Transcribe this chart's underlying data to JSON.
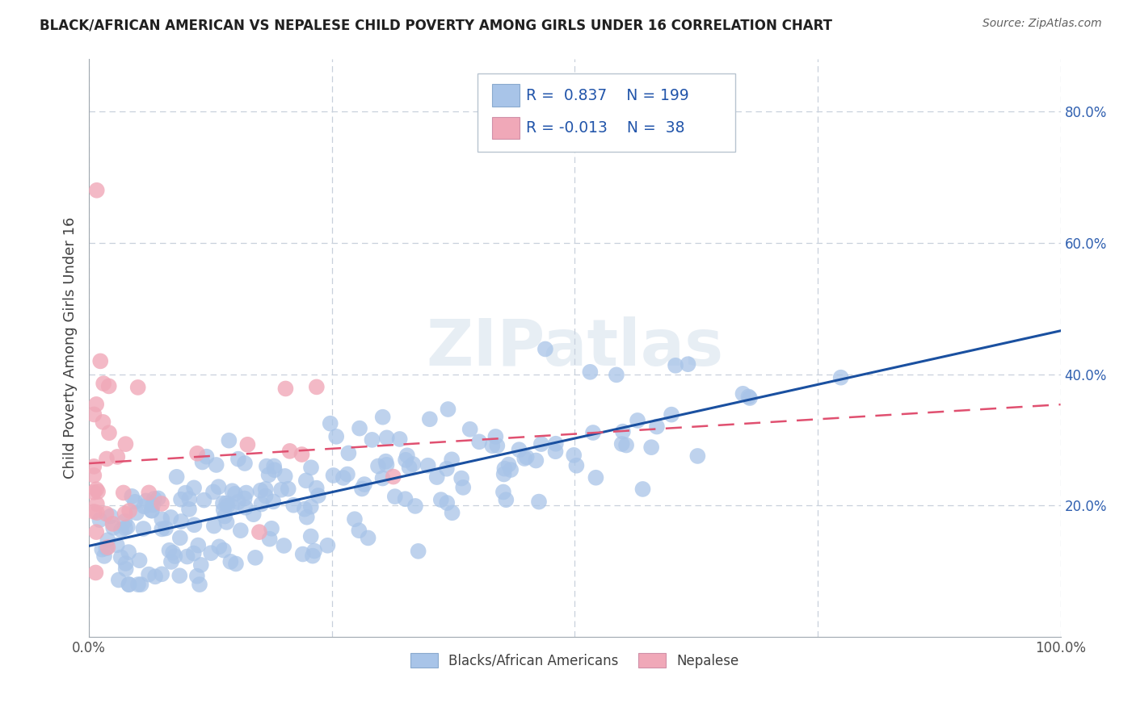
{
  "title": "BLACK/AFRICAN AMERICAN VS NEPALESE CHILD POVERTY AMONG GIRLS UNDER 16 CORRELATION CHART",
  "source": "Source: ZipAtlas.com",
  "ylabel": "Child Poverty Among Girls Under 16",
  "xlim": [
    0.0,
    1.0
  ],
  "ylim": [
    0.0,
    0.88
  ],
  "xtick_labels": [
    "0.0%",
    "100.0%"
  ],
  "ytick_labels": [
    "20.0%",
    "40.0%",
    "60.0%",
    "80.0%"
  ],
  "ytick_positions": [
    0.2,
    0.4,
    0.6,
    0.8
  ],
  "legend_labels": [
    "Blacks/African Americans",
    "Nepalese"
  ],
  "blue_R": "0.837",
  "blue_N": "199",
  "pink_R": "-0.013",
  "pink_N": "38",
  "blue_color": "#a8c4e8",
  "pink_color": "#f0a8b8",
  "blue_line_color": "#1a50a0",
  "pink_line_color": "#e05070",
  "title_color": "#202020",
  "source_color": "#606060",
  "grid_color": "#c8d0dc",
  "watermark": "ZIPatlas"
}
